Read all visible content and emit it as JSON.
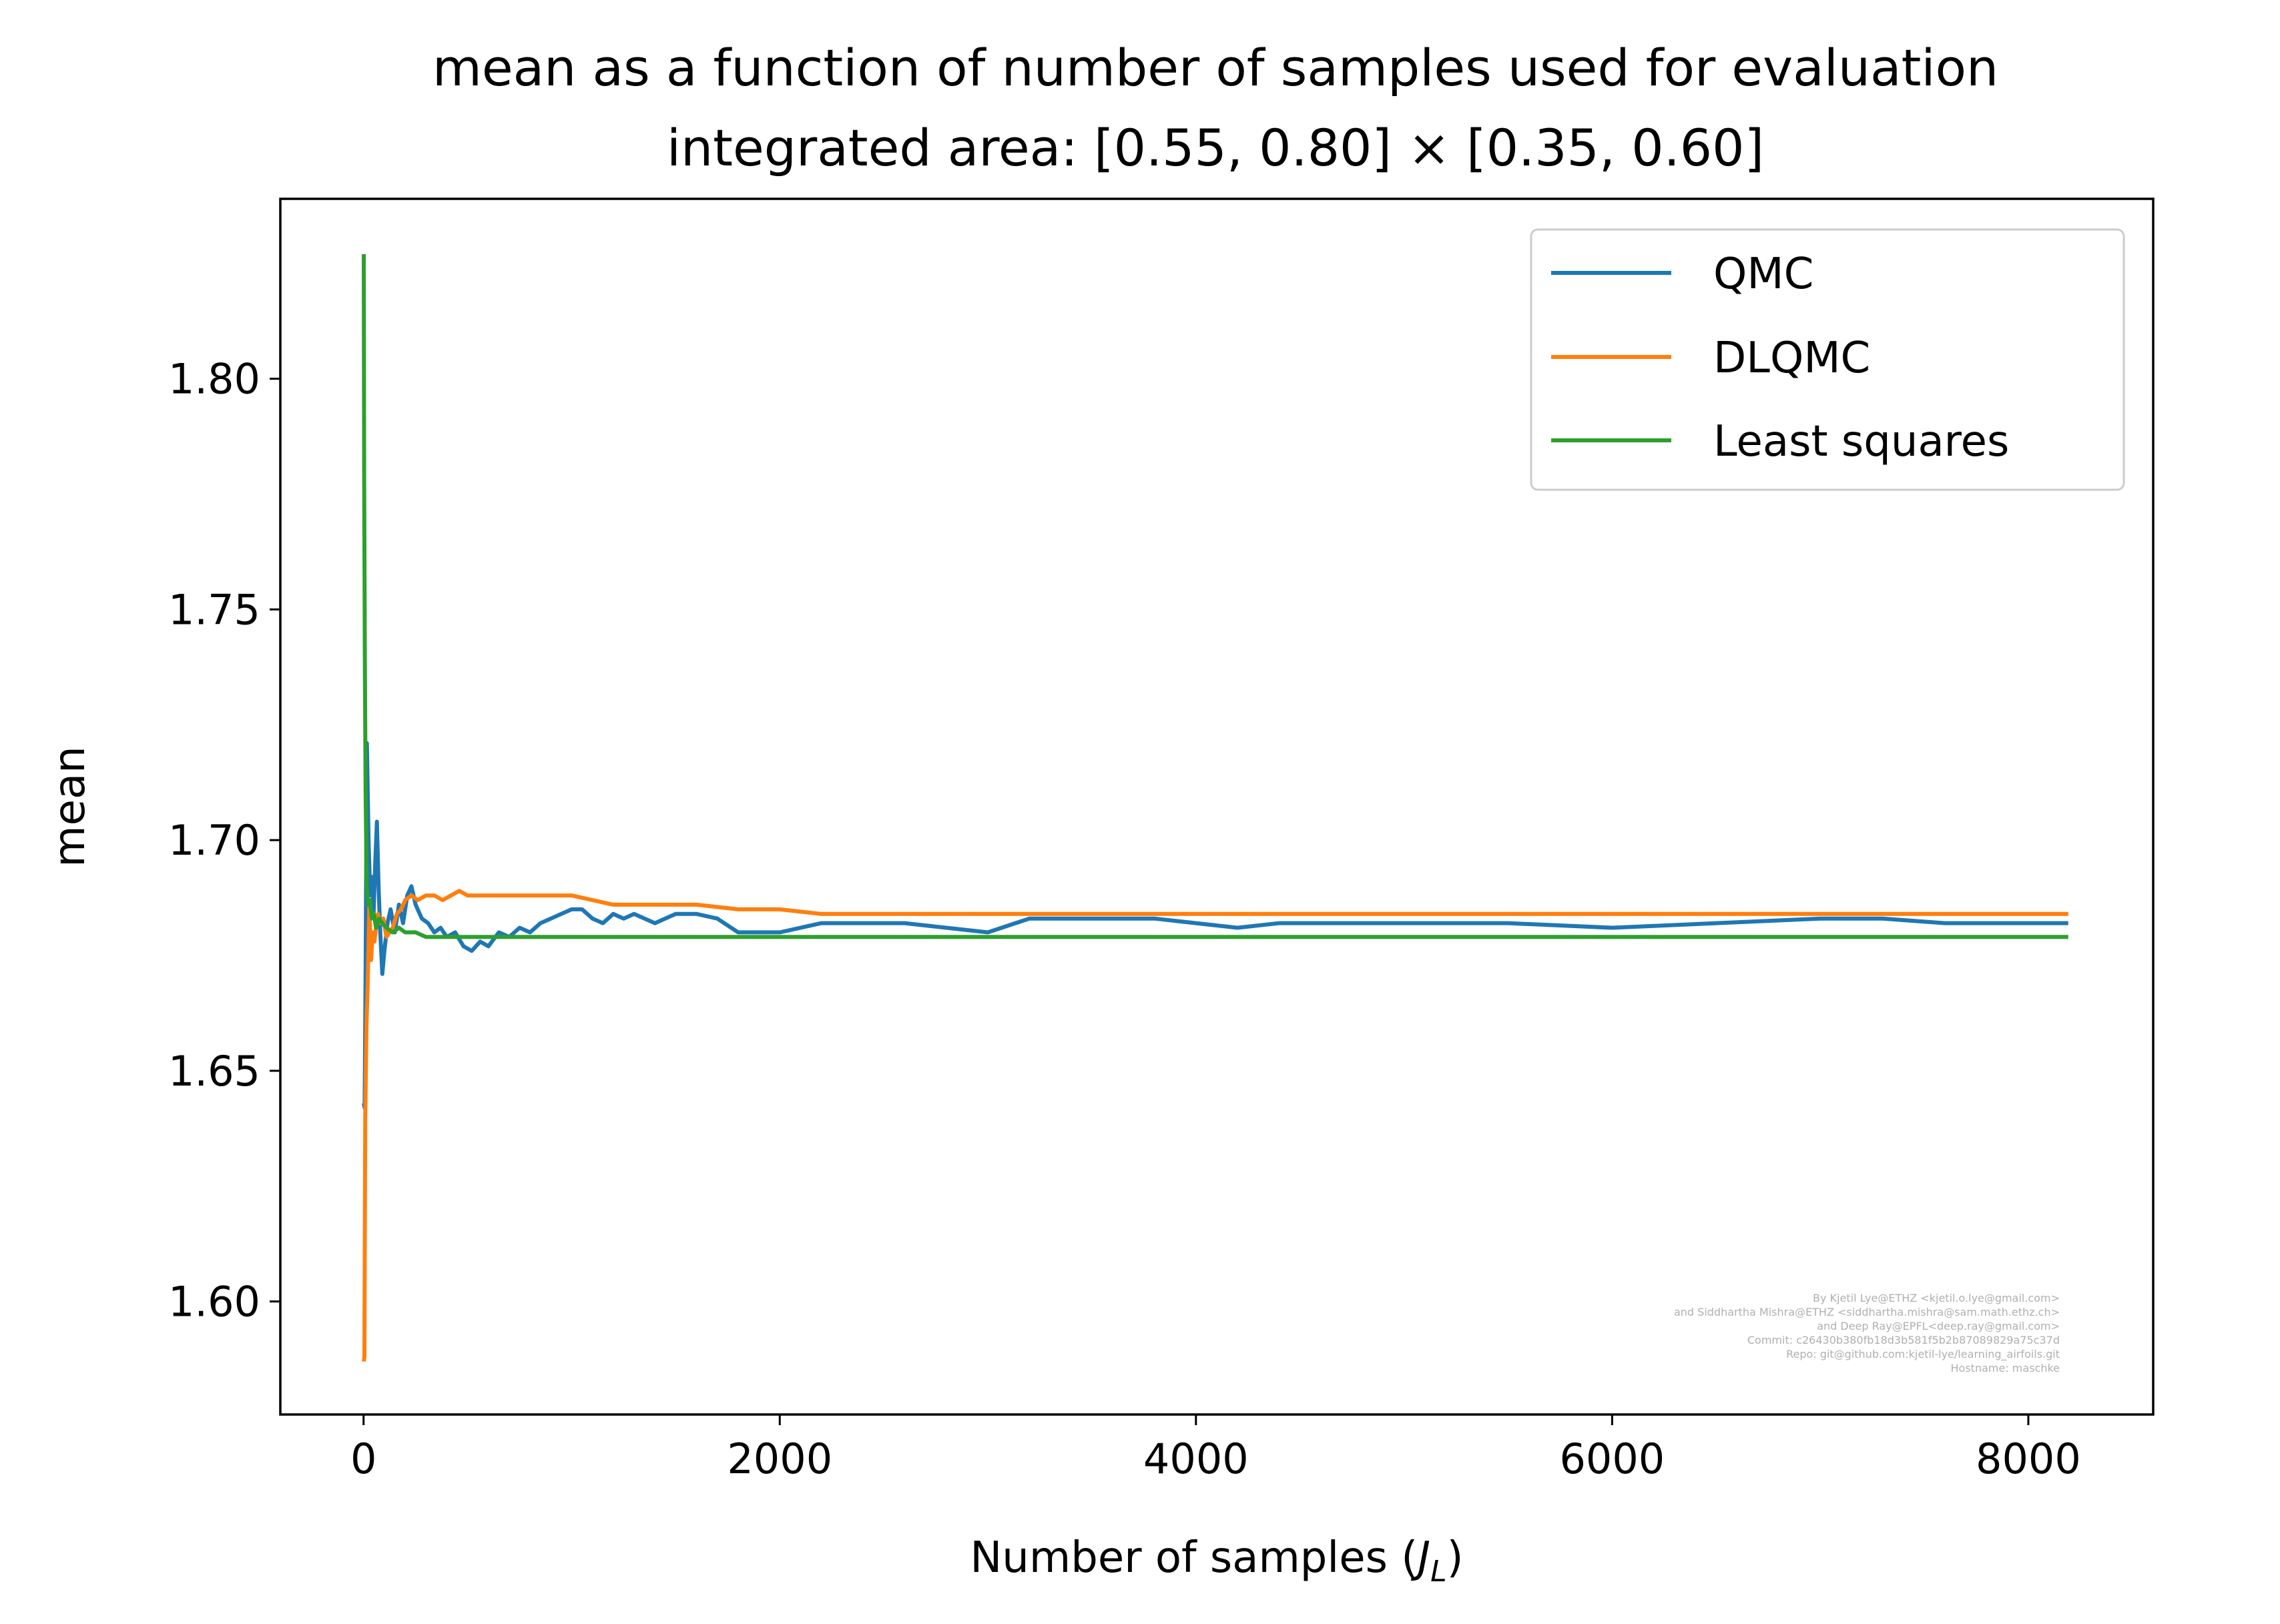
{
  "chart_data": {
    "type": "line",
    "title": "mean as a function of number of samples used for evaluation",
    "subtitle": "integrated area: [0.55, 0.80] × [0.35, 0.60]",
    "xlabel": "Number of samples (",
    "xlabel_var": "J",
    "xlabel_sub": "L",
    "xlabel_end": ")",
    "ylabel": "mean",
    "xlim": [
      -400,
      8600
    ],
    "ylim": [
      1.5755,
      1.839
    ],
    "xticks": [
      {
        "value": 0,
        "label": "0"
      },
      {
        "value": 2000,
        "label": "2000"
      },
      {
        "value": 4000,
        "label": "4000"
      },
      {
        "value": 6000,
        "label": "6000"
      },
      {
        "value": 8000,
        "label": "8000"
      }
    ],
    "yticks": [
      {
        "value": 1.6,
        "label": "1.60"
      },
      {
        "value": 1.65,
        "label": "1.65"
      },
      {
        "value": 1.7,
        "label": "1.70"
      },
      {
        "value": 1.75,
        "label": "1.75"
      },
      {
        "value": 1.8,
        "label": "1.80"
      }
    ],
    "grid": false,
    "legend_position": "top-right",
    "series": [
      {
        "name": "QMC",
        "color": "#1f77b4",
        "points": [
          [
            1,
            1.643
          ],
          [
            5,
            1.642
          ],
          [
            10,
            1.672
          ],
          [
            16,
            1.721
          ],
          [
            24,
            1.7
          ],
          [
            32,
            1.688
          ],
          [
            40,
            1.692
          ],
          [
            48,
            1.684
          ],
          [
            56,
            1.695
          ],
          [
            64,
            1.704
          ],
          [
            72,
            1.69
          ],
          [
            80,
            1.68
          ],
          [
            90,
            1.671
          ],
          [
            100,
            1.676
          ],
          [
            115,
            1.682
          ],
          [
            130,
            1.685
          ],
          [
            150,
            1.68
          ],
          [
            170,
            1.686
          ],
          [
            190,
            1.682
          ],
          [
            210,
            1.688
          ],
          [
            230,
            1.69
          ],
          [
            250,
            1.686
          ],
          [
            280,
            1.683
          ],
          [
            310,
            1.682
          ],
          [
            340,
            1.68
          ],
          [
            370,
            1.681
          ],
          [
            400,
            1.679
          ],
          [
            440,
            1.68
          ],
          [
            480,
            1.677
          ],
          [
            520,
            1.676
          ],
          [
            560,
            1.678
          ],
          [
            600,
            1.677
          ],
          [
            650,
            1.68
          ],
          [
            700,
            1.679
          ],
          [
            750,
            1.681
          ],
          [
            800,
            1.68
          ],
          [
            850,
            1.682
          ],
          [
            900,
            1.683
          ],
          [
            950,
            1.684
          ],
          [
            1000,
            1.685
          ],
          [
            1050,
            1.685
          ],
          [
            1100,
            1.683
          ],
          [
            1150,
            1.682
          ],
          [
            1200,
            1.684
          ],
          [
            1250,
            1.683
          ],
          [
            1300,
            1.684
          ],
          [
            1400,
            1.682
          ],
          [
            1500,
            1.684
          ],
          [
            1600,
            1.684
          ],
          [
            1700,
            1.683
          ],
          [
            1800,
            1.68
          ],
          [
            1900,
            1.68
          ],
          [
            2000,
            1.68
          ],
          [
            2200,
            1.682
          ],
          [
            2400,
            1.682
          ],
          [
            2600,
            1.682
          ],
          [
            2800,
            1.681
          ],
          [
            3000,
            1.68
          ],
          [
            3200,
            1.683
          ],
          [
            3400,
            1.683
          ],
          [
            3600,
            1.683
          ],
          [
            3800,
            1.683
          ],
          [
            4000,
            1.682
          ],
          [
            4200,
            1.681
          ],
          [
            4400,
            1.682
          ],
          [
            4600,
            1.682
          ],
          [
            4800,
            1.682
          ],
          [
            5000,
            1.682
          ],
          [
            5500,
            1.682
          ],
          [
            6000,
            1.681
          ],
          [
            6500,
            1.682
          ],
          [
            7000,
            1.683
          ],
          [
            7300,
            1.683
          ],
          [
            7600,
            1.682
          ],
          [
            8000,
            1.682
          ],
          [
            8192,
            1.682
          ]
        ]
      },
      {
        "name": "DLQMC",
        "color": "#ff7f0e",
        "points": [
          [
            1,
            1.587
          ],
          [
            4,
            1.588
          ],
          [
            8,
            1.64
          ],
          [
            14,
            1.66
          ],
          [
            20,
            1.669
          ],
          [
            28,
            1.686
          ],
          [
            36,
            1.674
          ],
          [
            44,
            1.68
          ],
          [
            52,
            1.678
          ],
          [
            60,
            1.681
          ],
          [
            70,
            1.684
          ],
          [
            80,
            1.682
          ],
          [
            95,
            1.683
          ],
          [
            110,
            1.679
          ],
          [
            125,
            1.68
          ],
          [
            140,
            1.681
          ],
          [
            160,
            1.684
          ],
          [
            180,
            1.685
          ],
          [
            200,
            1.687
          ],
          [
            230,
            1.688
          ],
          [
            260,
            1.687
          ],
          [
            300,
            1.688
          ],
          [
            340,
            1.688
          ],
          [
            380,
            1.687
          ],
          [
            420,
            1.688
          ],
          [
            460,
            1.689
          ],
          [
            500,
            1.688
          ],
          [
            600,
            1.688
          ],
          [
            700,
            1.688
          ],
          [
            800,
            1.688
          ],
          [
            900,
            1.688
          ],
          [
            1000,
            1.688
          ],
          [
            1100,
            1.687
          ],
          [
            1200,
            1.686
          ],
          [
            1400,
            1.686
          ],
          [
            1600,
            1.686
          ],
          [
            1800,
            1.685
          ],
          [
            2000,
            1.685
          ],
          [
            2200,
            1.684
          ],
          [
            2600,
            1.684
          ],
          [
            3000,
            1.684
          ],
          [
            3500,
            1.684
          ],
          [
            4000,
            1.684
          ],
          [
            5000,
            1.684
          ],
          [
            6000,
            1.684
          ],
          [
            7000,
            1.684
          ],
          [
            8000,
            1.684
          ],
          [
            8192,
            1.684
          ]
        ]
      },
      {
        "name": "Least squares",
        "color": "#2ca02c",
        "points": [
          [
            1,
            1.827
          ],
          [
            3,
            1.78
          ],
          [
            6,
            1.74
          ],
          [
            10,
            1.71
          ],
          [
            15,
            1.69
          ],
          [
            22,
            1.686
          ],
          [
            30,
            1.687
          ],
          [
            40,
            1.683
          ],
          [
            50,
            1.684
          ],
          [
            60,
            1.681
          ],
          [
            75,
            1.683
          ],
          [
            90,
            1.682
          ],
          [
            110,
            1.681
          ],
          [
            140,
            1.68
          ],
          [
            170,
            1.681
          ],
          [
            200,
            1.68
          ],
          [
            250,
            1.68
          ],
          [
            300,
            1.679
          ],
          [
            400,
            1.679
          ],
          [
            500,
            1.679
          ],
          [
            700,
            1.679
          ],
          [
            1000,
            1.679
          ],
          [
            1500,
            1.679
          ],
          [
            2000,
            1.679
          ],
          [
            3000,
            1.679
          ],
          [
            4000,
            1.679
          ],
          [
            5000,
            1.679
          ],
          [
            6000,
            1.679
          ],
          [
            7000,
            1.679
          ],
          [
            8000,
            1.679
          ],
          [
            8192,
            1.679
          ]
        ]
      }
    ]
  },
  "credits": [
    "By Kjetil Lye@ETHZ <kjetil.o.lye@gmail.com>",
    "and Siddhartha Mishra@ETHZ <siddhartha.mishra@sam.math.ethz.ch>",
    "and Deep Ray@EPFL<deep.ray@gmail.com>",
    "Commit: c26430b380fb18d3b581f5b2b87089829a75c37d",
    "Repo: git@github.com:kjetil-lye/learning_airfoils.git",
    "Hostname: maschke"
  ]
}
